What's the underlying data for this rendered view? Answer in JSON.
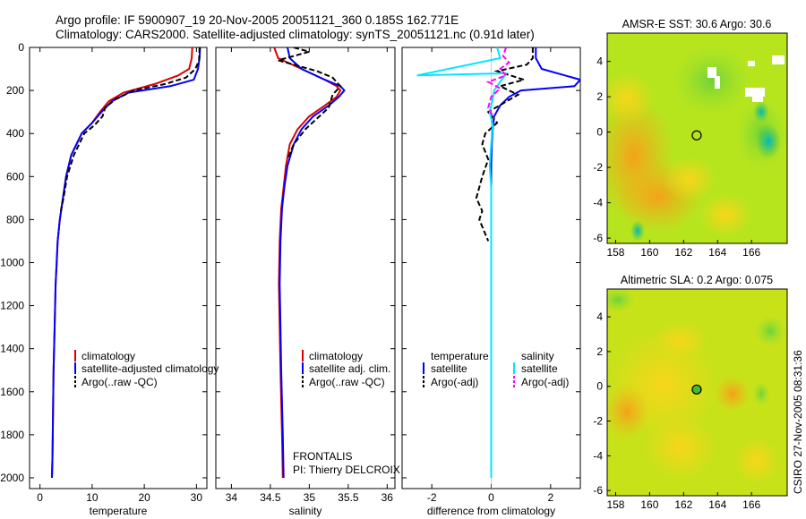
{
  "header": {
    "line1": "Argo profile: IF 5900907_19 20-Nov-2005 20051121_360 0.185S 162.771E",
    "line2": "Climatology: CARS2000. Satellite-adjusted climatology: synTS_20051121.nc (0.91d later)"
  },
  "footer": {
    "stamp": "CSIRO 27-Nov-2005 08:31:36",
    "float_name": "FRONTALIS",
    "pi_name": "PI: Thierry DELCROIX"
  },
  "colors": {
    "climatology": "#dd0000",
    "satellite": "#0000ff",
    "argo": "#000000",
    "sat_salinity": "#00e6ff",
    "argo_salinity": "#ff00ff"
  },
  "chart_data": [
    {
      "type": "line",
      "id": "temperature",
      "xlabel": "temperature",
      "ylabel": "",
      "xlim": [
        -2,
        32
      ],
      "ylim": [
        2050,
        0
      ],
      "xticks": [
        0,
        10,
        20,
        30
      ],
      "yticks": [
        0,
        200,
        400,
        600,
        800,
        1000,
        1200,
        1400,
        1600,
        1800,
        2000
      ],
      "legend": [
        "climatology",
        "satellite-adjusted climatology",
        "Argo(..raw -QC)"
      ],
      "legend_position": "lower-right",
      "series": [
        {
          "name": "climatology",
          "color": "#dd0000",
          "style": "solid",
          "x": [
            29.2,
            29.1,
            28.6,
            26.5,
            22,
            16,
            13.2,
            11.5,
            10,
            8,
            6,
            5,
            4.4,
            3.8,
            3.4,
            3.2,
            3,
            2.8,
            2.6,
            2.5,
            2.4,
            2.3
          ],
          "y": [
            0,
            50,
            100,
            130,
            170,
            210,
            250,
            300,
            350,
            400,
            500,
            600,
            700,
            800,
            900,
            1000,
            1100,
            1300,
            1500,
            1700,
            1900,
            2000
          ]
        },
        {
          "name": "satellite-adjusted climatology",
          "color": "#0000ff",
          "style": "solid",
          "x": [
            30.7,
            30.6,
            30.3,
            29.5,
            25,
            17,
            13.8,
            11.8,
            10,
            8,
            6,
            5,
            4.4,
            3.8,
            3.4,
            3.2,
            3,
            2.8,
            2.6,
            2.5,
            2.4,
            2.3
          ],
          "y": [
            0,
            50,
            100,
            150,
            180,
            210,
            250,
            300,
            350,
            400,
            500,
            600,
            700,
            800,
            900,
            1000,
            1100,
            1300,
            1500,
            1700,
            1900,
            2000
          ]
        },
        {
          "name": "Argo(..raw -QC)",
          "color": "#000000",
          "style": "dashed",
          "x": [
            30.6,
            30.5,
            29.8,
            28,
            24,
            18,
            14.5,
            12.5,
            12,
            10.5,
            8.5,
            6.5,
            5.2,
            4.5,
            4
          ],
          "y": [
            0,
            60,
            100,
            140,
            170,
            200,
            240,
            280,
            320,
            360,
            400,
            500,
            600,
            700,
            760
          ]
        }
      ]
    },
    {
      "type": "line",
      "id": "salinity",
      "xlabel": "salinity",
      "ylabel": "",
      "xlim": [
        33.8,
        36.1
      ],
      "ylim": [
        2050,
        0
      ],
      "xticks": [
        34,
        34.5,
        35,
        35.5,
        36
      ],
      "xtick_labels": [
        "34",
        "34.5",
        "35",
        "35.5",
        "36"
      ],
      "legend": [
        "climatology",
        "satellite adj. clim.",
        "Argo(..raw -QC)"
      ],
      "legend_position": "lower-right",
      "series": [
        {
          "name": "climatology",
          "color": "#dd0000",
          "style": "solid",
          "x": [
            34.55,
            34.6,
            34.9,
            35.2,
            35.35,
            35.4,
            35.35,
            35.2,
            35.0,
            34.85,
            34.75,
            34.7,
            34.67,
            34.64,
            34.62,
            34.61,
            34.62,
            34.63,
            34.65,
            34.66
          ],
          "y": [
            0,
            50,
            100,
            150,
            180,
            200,
            230,
            270,
            320,
            380,
            450,
            550,
            650,
            750,
            900,
            1100,
            1300,
            1500,
            1800,
            2000
          ]
        },
        {
          "name": "satellite adj. clim.",
          "color": "#0000ff",
          "style": "solid",
          "x": [
            34.72,
            34.75,
            34.9,
            35.2,
            35.4,
            35.45,
            35.38,
            35.25,
            35.05,
            34.9,
            34.8,
            34.72,
            34.68,
            34.65,
            34.63,
            34.62,
            34.63,
            34.64,
            34.66,
            34.67
          ],
          "y": [
            0,
            50,
            100,
            150,
            180,
            200,
            230,
            270,
            320,
            380,
            450,
            550,
            650,
            750,
            900,
            1100,
            1300,
            1500,
            1800,
            2000
          ]
        },
        {
          "name": "Argo(..raw -QC)",
          "color": "#000000",
          "style": "dashed",
          "x": [
            34.8,
            35.0,
            34.6,
            35.1,
            35.3,
            35.4,
            35.3,
            35.25,
            35.1,
            34.95,
            34.8,
            34.72
          ],
          "y": [
            0,
            20,
            60,
            110,
            140,
            180,
            220,
            280,
            330,
            380,
            450,
            520
          ]
        }
      ]
    },
    {
      "type": "line",
      "id": "difference",
      "xlabel": "difference from climatology",
      "ylabel": "",
      "xlim": [
        -3,
        3
      ],
      "ylim": [
        2050,
        0
      ],
      "xticks": [
        -2,
        0,
        2
      ],
      "legend_headers": [
        "temperature",
        "salinity"
      ],
      "legend": [
        "satellite",
        "Argo(-adj)",
        "satellite",
        "Argo(-adj)"
      ],
      "legend_position": "lower-center",
      "series": [
        {
          "name": "temperature satellite",
          "color": "#0000ff",
          "style": "solid",
          "x": [
            1.5,
            1.5,
            1.7,
            3.0,
            2.8,
            1.0,
            0.6,
            0.3,
            0.1,
            0.05,
            0.02,
            0,
            0,
            0,
            0,
            0,
            0,
            0,
            0
          ],
          "y": [
            0,
            50,
            100,
            150,
            180,
            200,
            230,
            270,
            320,
            380,
            450,
            550,
            650,
            750,
            900,
            1100,
            1300,
            1600,
            2000
          ]
        },
        {
          "name": "temperature Argo(-adj)",
          "color": "#000000",
          "style": "dashed",
          "x": [
            1.4,
            1.4,
            1.2,
            0.2,
            1.1,
            0.3,
            0.9,
            0.4,
            -0.1,
            0.2,
            -0.2,
            -0.3,
            -0.1,
            -0.3,
            -0.4,
            -0.5,
            -0.3,
            -0.4,
            -0.1
          ],
          "y": [
            0,
            50,
            80,
            110,
            150,
            180,
            220,
            260,
            300,
            350,
            400,
            450,
            520,
            600,
            650,
            700,
            760,
            800,
            900
          ]
        },
        {
          "name": "salinity satellite",
          "color": "#00e6ff",
          "style": "solid",
          "x": [
            0.2,
            0.3,
            -2.5,
            0.5,
            0.3,
            0.1,
            0.05,
            -0.05,
            0.05,
            0,
            -0.05,
            0,
            0,
            0,
            0,
            0,
            0,
            0,
            0
          ],
          "y": [
            0,
            50,
            130,
            120,
            160,
            200,
            240,
            300,
            360,
            450,
            550,
            650,
            750,
            900,
            1100,
            1300,
            1500,
            1800,
            2000
          ]
        },
        {
          "name": "salinity Argo(-adj)",
          "color": "#ff00ff",
          "style": "dashed",
          "x": [
            0.5,
            0.4,
            0.6,
            0.3,
            0.5,
            -0.1,
            0.3,
            0,
            -0.1,
            0.1
          ],
          "y": [
            0,
            40,
            70,
            100,
            130,
            160,
            190,
            230,
            280,
            330
          ]
        }
      ]
    },
    {
      "type": "heatmap",
      "id": "sst",
      "title": "AMSR-E SST: 30.6 Argo: 30.6",
      "xlim": [
        157.5,
        168.1
      ],
      "ylim": [
        -6.3,
        5.6
      ],
      "xticks": [
        158,
        160,
        162,
        164,
        166
      ],
      "yticks": [
        -6,
        -4,
        -2,
        0,
        2,
        4
      ],
      "marker": {
        "lon": 162.771,
        "lat": -0.185
      }
    },
    {
      "type": "heatmap",
      "id": "sla",
      "title": "Altimetric SLA: 0.2 Argo: 0.075",
      "xlim": [
        157.5,
        168.1
      ],
      "ylim": [
        -6.3,
        5.6
      ],
      "xticks": [
        158,
        160,
        162,
        164,
        166
      ],
      "yticks": [
        -6,
        -4,
        -2,
        0,
        2,
        4
      ],
      "marker": {
        "lon": 162.771,
        "lat": -0.185
      }
    }
  ]
}
